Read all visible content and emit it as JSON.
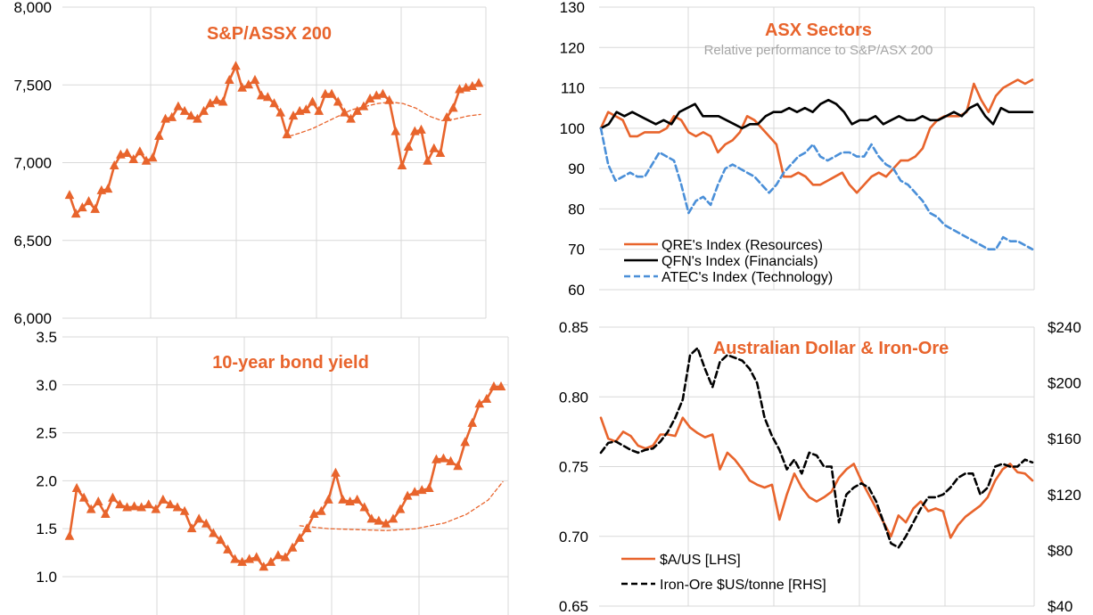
{
  "colors": {
    "orange": "#e8642c",
    "black": "#000000",
    "blue": "#4a8fd8",
    "grid": "#d9d9d9",
    "subtitle": "#a6a6a6"
  },
  "chart_data": [
    {
      "id": "asx200",
      "type": "line",
      "title": "S&P/ASSX 200",
      "ylim": [
        6000,
        8000
      ],
      "yticks": [
        "6,000",
        "6,500",
        "7,000",
        "7,500",
        "8,000"
      ],
      "ytick_values": [
        6000,
        6500,
        7000,
        7500,
        8000
      ],
      "grid": true,
      "series": [
        {
          "style": "line-triangle-markers",
          "color": "#e8642c",
          "values": [
            6790,
            6670,
            6710,
            6750,
            6700,
            6820,
            6830,
            6980,
            7050,
            7060,
            7020,
            7070,
            7010,
            7030,
            7170,
            7280,
            7290,
            7360,
            7330,
            7300,
            7280,
            7330,
            7380,
            7400,
            7390,
            7530,
            7620,
            7480,
            7500,
            7530,
            7430,
            7420,
            7380,
            7320,
            7180,
            7300,
            7330,
            7340,
            7390,
            7330,
            7440,
            7440,
            7390,
            7320,
            7280,
            7330,
            7360,
            7410,
            7430,
            7440,
            7400,
            7200,
            6980,
            7100,
            7200,
            7210,
            7010,
            7090,
            7060,
            7290,
            7350,
            7470,
            7480,
            7490,
            7510
          ]
        },
        {
          "style": "dashed-thin",
          "color": "#e8642c",
          "points": [
            [
              33.5,
              7160
            ],
            [
              36,
              7190
            ],
            [
              38,
              7220
            ],
            [
              40,
              7260
            ],
            [
              42,
              7300
            ],
            [
              44,
              7340
            ],
            [
              46,
              7360
            ],
            [
              48,
              7380
            ],
            [
              50,
              7390
            ],
            [
              52,
              7380
            ],
            [
              54,
              7350
            ],
            [
              56,
              7300
            ],
            [
              58,
              7270
            ],
            [
              60,
              7280
            ],
            [
              62,
              7300
            ],
            [
              64,
              7310
            ]
          ]
        }
      ]
    },
    {
      "id": "bond",
      "type": "line",
      "title": "10-year bond yield",
      "ylim": [
        0.6,
        3.5
      ],
      "yticks": [
        "1.0",
        "1.5",
        "2.0",
        "2.5",
        "3.0",
        "3.5"
      ],
      "ytick_values": [
        1.0,
        1.5,
        2.0,
        2.5,
        3.0,
        3.5
      ],
      "grid": true,
      "series": [
        {
          "style": "line-triangle-markers",
          "color": "#e8642c",
          "values": [
            1.42,
            1.92,
            1.82,
            1.7,
            1.78,
            1.65,
            1.82,
            1.75,
            1.72,
            1.73,
            1.72,
            1.75,
            1.7,
            1.8,
            1.75,
            1.72,
            1.68,
            1.5,
            1.6,
            1.55,
            1.45,
            1.38,
            1.28,
            1.18,
            1.15,
            1.18,
            1.2,
            1.1,
            1.15,
            1.22,
            1.2,
            1.3,
            1.4,
            1.5,
            1.65,
            1.68,
            1.8,
            2.08,
            1.8,
            1.78,
            1.8,
            1.72,
            1.6,
            1.58,
            1.55,
            1.6,
            1.7,
            1.84,
            1.88,
            1.9,
            1.92,
            2.22,
            2.23,
            2.2,
            2.15,
            2.4,
            2.6,
            2.8,
            2.85,
            2.98,
            2.98
          ]
        },
        {
          "style": "dashed-thin",
          "color": "#e8642c",
          "points": [
            [
              32,
              1.53
            ],
            [
              36,
              1.5
            ],
            [
              40,
              1.49
            ],
            [
              44,
              1.48
            ],
            [
              48,
              1.5
            ],
            [
              52,
              1.56
            ],
            [
              55,
              1.65
            ],
            [
              58,
              1.8
            ],
            [
              60,
              1.99
            ]
          ]
        }
      ]
    },
    {
      "id": "sectors",
      "type": "line",
      "title": "ASX Sectors",
      "subtitle": "Relative performance to S&P/ASX 200",
      "ylim": [
        60,
        130
      ],
      "yticks": [
        "60",
        "70",
        "80",
        "90",
        "100",
        "110",
        "120",
        "130"
      ],
      "ytick_values": [
        60,
        70,
        80,
        90,
        100,
        110,
        120,
        130
      ],
      "grid": true,
      "legend_position": "bottom-left",
      "series": [
        {
          "name": "QRE's Index (Resources)",
          "style": "solid",
          "color": "#e8642c",
          "values": [
            100,
            104,
            103,
            102,
            98,
            98,
            99,
            99,
            99,
            100,
            103,
            102,
            99,
            98,
            99,
            98,
            94,
            96,
            97,
            99,
            103,
            102,
            100,
            98,
            96,
            88,
            88,
            89,
            88,
            86,
            86,
            87,
            88,
            89,
            86,
            84,
            86,
            88,
            89,
            88,
            90,
            92,
            92,
            93,
            95,
            100,
            102,
            103,
            103,
            103,
            104,
            111,
            107,
            104,
            108,
            110,
            111,
            112,
            111,
            112
          ]
        },
        {
          "name": "QFN's Index (Financials)",
          "style": "solid",
          "color": "#000000",
          "values": [
            100,
            101,
            104,
            103,
            104,
            103,
            102,
            101,
            102,
            101,
            104,
            105,
            106,
            103,
            103,
            103,
            102,
            101,
            100,
            101,
            101,
            103,
            104,
            104,
            105,
            104,
            105,
            104,
            106,
            107,
            106,
            104,
            101,
            102,
            102,
            103,
            101,
            102,
            103,
            102,
            102,
            103,
            102,
            102,
            103,
            104,
            103,
            105,
            106,
            103,
            101,
            105,
            104,
            104,
            104,
            104
          ]
        },
        {
          "name": "ATEC's Index (Technology)",
          "style": "dashed",
          "color": "#4a8fd8",
          "values": [
            100,
            91,
            87,
            88,
            89,
            88,
            88,
            91,
            94,
            93,
            92,
            86,
            79,
            82,
            83,
            81,
            86,
            90,
            91,
            90,
            89,
            88,
            86,
            84,
            86,
            89,
            91,
            93,
            94,
            96,
            93,
            92,
            93,
            94,
            94,
            93,
            93,
            96,
            93,
            91,
            90,
            87,
            86,
            84,
            82,
            79,
            78,
            76,
            75,
            74,
            73,
            72,
            71,
            70,
            70,
            73,
            72,
            72,
            71,
            70
          ]
        }
      ]
    },
    {
      "id": "aud",
      "type": "line",
      "title": "Australian Dollar & Iron-Ore",
      "ylim": [
        0.65,
        0.85
      ],
      "yticks": [
        "0.65",
        "0.70",
        "0.75",
        "0.80",
        "0.85"
      ],
      "ytick_values": [
        0.65,
        0.7,
        0.75,
        0.8,
        0.85
      ],
      "y2lim": [
        40,
        240
      ],
      "y2ticks": [
        "$40",
        "$80",
        "$120",
        "$160",
        "$200",
        "$240"
      ],
      "y2tick_values": [
        40,
        80,
        120,
        160,
        200,
        240
      ],
      "grid": true,
      "legend_position": "bottom-left",
      "series": [
        {
          "name": "$A/US [LHS]",
          "style": "solid",
          "color": "#e8642c",
          "axis": "left",
          "values": [
            0.785,
            0.77,
            0.768,
            0.775,
            0.772,
            0.765,
            0.763,
            0.765,
            0.773,
            0.773,
            0.772,
            0.785,
            0.778,
            0.774,
            0.771,
            0.773,
            0.748,
            0.76,
            0.755,
            0.748,
            0.74,
            0.737,
            0.735,
            0.737,
            0.712,
            0.73,
            0.745,
            0.735,
            0.728,
            0.725,
            0.728,
            0.732,
            0.742,
            0.748,
            0.752,
            0.74,
            0.73,
            0.72,
            0.71,
            0.7,
            0.715,
            0.71,
            0.72,
            0.725,
            0.718,
            0.72,
            0.718,
            0.699,
            0.708,
            0.714,
            0.718,
            0.722,
            0.728,
            0.74,
            0.748,
            0.752,
            0.746,
            0.745,
            0.74
          ]
        },
        {
          "name": "Iron-Ore $US/tonne [RHS]",
          "style": "dashed",
          "color": "#000000",
          "axis": "right",
          "values": [
            150,
            157,
            158,
            155,
            152,
            150,
            152,
            153,
            158,
            165,
            175,
            188,
            220,
            225,
            210,
            197,
            215,
            220,
            218,
            216,
            210,
            200,
            175,
            162,
            152,
            138,
            145,
            135,
            150,
            148,
            140,
            140,
            100,
            120,
            125,
            128,
            125,
            115,
            100,
            85,
            82,
            90,
            100,
            110,
            118,
            118,
            120,
            125,
            132,
            135,
            135,
            120,
            125,
            140,
            142,
            140,
            140,
            145,
            143
          ]
        }
      ]
    }
  ]
}
